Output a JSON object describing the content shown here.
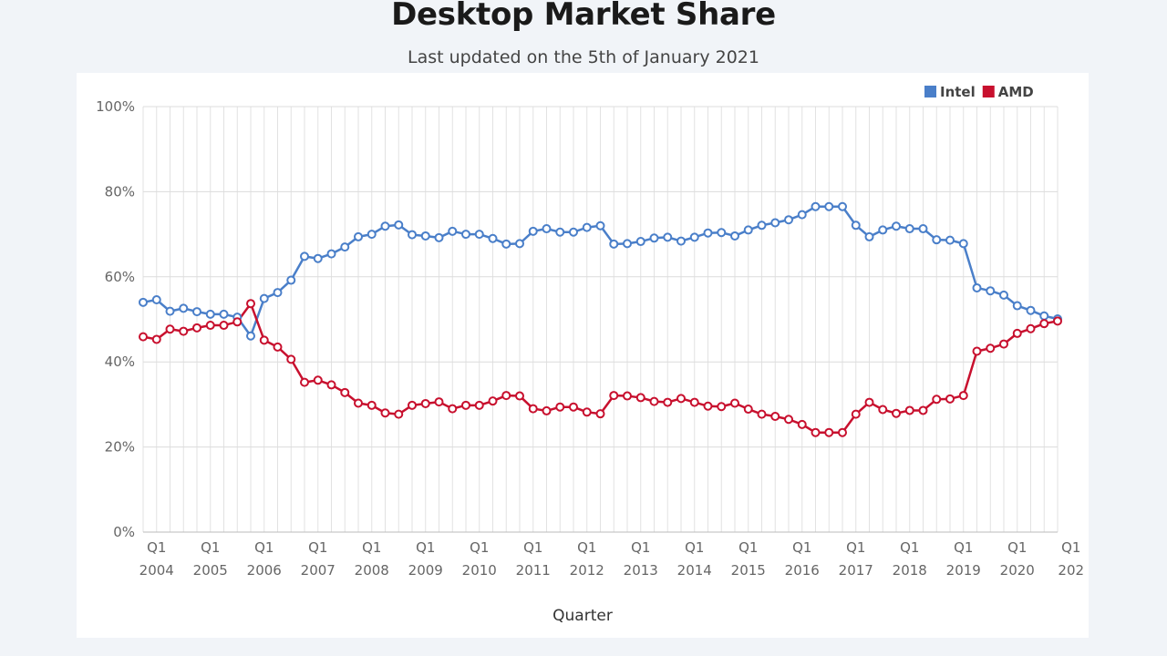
{
  "chart_data": {
    "type": "line",
    "title": "Desktop Market Share",
    "subtitle": "Last updated on the 5th of January 2021",
    "xlabel": "Quarter",
    "ylabel": "",
    "ylim": [
      0,
      100
    ],
    "y_ticks": [
      "0%",
      "20%",
      "40%",
      "60%",
      "80%",
      "100%"
    ],
    "x_tick_labels": [
      {
        "q": "Q1",
        "year": "2004"
      },
      {
        "q": "Q1",
        "year": "2005"
      },
      {
        "q": "Q1",
        "year": "2006"
      },
      {
        "q": "Q1",
        "year": "2007"
      },
      {
        "q": "Q1",
        "year": "2008"
      },
      {
        "q": "Q1",
        "year": "2009"
      },
      {
        "q": "Q1",
        "year": "2010"
      },
      {
        "q": "Q1",
        "year": "2011"
      },
      {
        "q": "Q1",
        "year": "2012"
      },
      {
        "q": "Q1",
        "year": "2013"
      },
      {
        "q": "Q1",
        "year": "2014"
      },
      {
        "q": "Q1",
        "year": "2015"
      },
      {
        "q": "Q1",
        "year": "2016"
      },
      {
        "q": "Q1",
        "year": "2017"
      },
      {
        "q": "Q1",
        "year": "2018"
      },
      {
        "q": "Q1",
        "year": "2019"
      },
      {
        "q": "Q1",
        "year": "2020"
      },
      {
        "q": "Q1",
        "year": "202"
      }
    ],
    "grid": true,
    "legend_position": "top-right",
    "series": [
      {
        "name": "Intel",
        "color": "#4a7fc9",
        "values": [
          54,
          54.6,
          51.9,
          52.6,
          51.8,
          51.2,
          51.2,
          50.5,
          46.1,
          54.9,
          56.3,
          59.2,
          64.8,
          64.3,
          65.4,
          67,
          69.4,
          70,
          71.9,
          72.2,
          69.9,
          69.6,
          69.2,
          70.7,
          70,
          70,
          69,
          67.7,
          67.8,
          70.7,
          71.3,
          70.5,
          70.5,
          71.6,
          72,
          67.7,
          67.8,
          68.3,
          69.1,
          69.3,
          68.4,
          69.3,
          70.3,
          70.4,
          69.6,
          71,
          72.1,
          72.7,
          73.4,
          74.6,
          76.5,
          76.5,
          76.5,
          72.1,
          69.4,
          71,
          71.9,
          71.3,
          71.3,
          68.7,
          68.6,
          67.8,
          57.4,
          56.7,
          55.7,
          53.2,
          52.1,
          50.8,
          50.1
        ]
      },
      {
        "name": "AMD",
        "color": "#c8102e",
        "values": [
          45.9,
          45.3,
          47.7,
          47.2,
          48,
          48.6,
          48.6,
          49.4,
          53.7,
          45.1,
          43.5,
          40.6,
          35.2,
          35.7,
          34.6,
          32.8,
          30.3,
          29.8,
          28,
          27.7,
          29.8,
          30.2,
          30.6,
          29,
          29.8,
          29.8,
          30.8,
          32.1,
          32,
          29,
          28.5,
          29.4,
          29.4,
          28.2,
          27.8,
          32.1,
          32,
          31.6,
          30.7,
          30.5,
          31.4,
          30.5,
          29.6,
          29.5,
          30.3,
          28.9,
          27.7,
          27.2,
          26.5,
          25.3,
          23.4,
          23.4,
          23.4,
          27.7,
          30.5,
          28.8,
          27.9,
          28.6,
          28.6,
          31.2,
          31.3,
          32.1,
          42.5,
          43.2,
          44.2,
          46.7,
          47.8,
          49,
          49.6
        ]
      }
    ]
  }
}
